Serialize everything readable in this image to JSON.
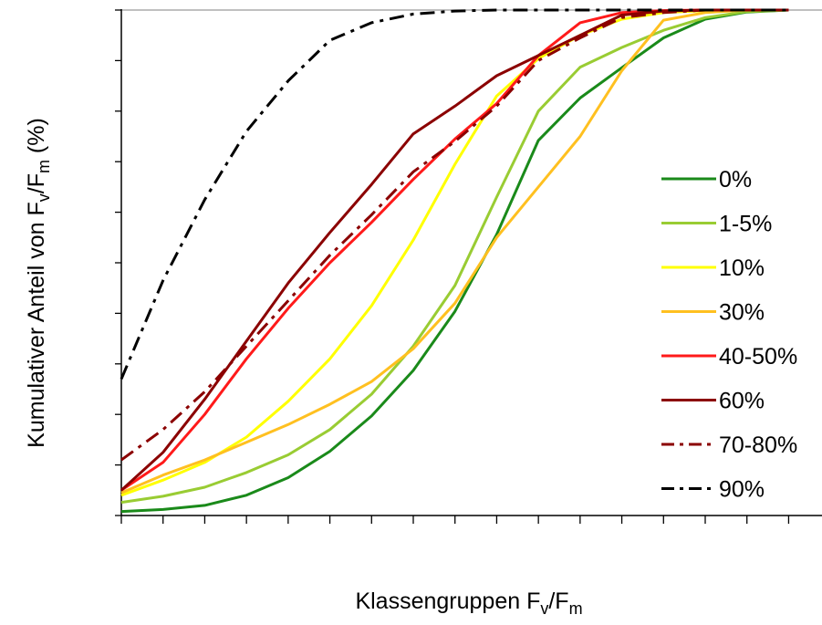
{
  "chart_data": {
    "type": "line",
    "title": "",
    "xlabel": {
      "base": "Klassengruppen F",
      "sub1": "v",
      "sep": "/F",
      "sub2": "m"
    },
    "ylabel": {
      "base": "Kumulativer Anteil von F",
      "sub1": "v",
      "sep": "/F",
      "sub2": "m",
      "suffix": " (%)"
    },
    "x": [
      1,
      2,
      3,
      4,
      5,
      6,
      7,
      8,
      9,
      10,
      11,
      12,
      13,
      14,
      15,
      16,
      17
    ],
    "xlim": [
      1,
      17.8
    ],
    "ylim": [
      0,
      100
    ],
    "y_ticks": [
      0,
      10,
      20,
      30,
      40,
      50,
      60,
      70,
      80,
      90,
      100
    ],
    "grid": false,
    "legend_position": "right",
    "series": [
      {
        "name": "0%",
        "color": "#1a8a1a",
        "dash": "solid",
        "values": [
          0.8,
          1.2,
          2.0,
          4.0,
          7.5,
          12.7,
          19.7,
          28.7,
          40.4,
          55.6,
          74.2,
          82.6,
          88.6,
          94.5,
          98.2,
          99.6,
          100
        ]
      },
      {
        "name": "1-5%",
        "color": "#99cc33",
        "dash": "solid",
        "values": [
          2.6,
          3.8,
          5.6,
          8.5,
          12.0,
          17.0,
          24.0,
          33.5,
          45.5,
          63.0,
          80.0,
          88.7,
          92.6,
          96.0,
          98.5,
          99.7,
          100
        ]
      },
      {
        "name": "10%",
        "color": "#ffff00",
        "dash": "solid",
        "values": [
          4.0,
          7.0,
          10.5,
          15.5,
          22.6,
          31.0,
          41.5,
          54.5,
          69.5,
          83.0,
          90.4,
          95.0,
          98.2,
          99.5,
          99.9,
          100,
          100
        ]
      },
      {
        "name": "30%",
        "color": "#ffc020",
        "dash": "solid",
        "values": [
          4.5,
          8.0,
          11.0,
          14.5,
          18.0,
          22.0,
          26.5,
          33.0,
          42.0,
          55.0,
          65.0,
          75.0,
          88.0,
          98.0,
          99.5,
          100,
          100
        ]
      },
      {
        "name": "40-50%",
        "color": "#ff1a1a",
        "dash": "solid",
        "values": [
          5.0,
          10.5,
          20.0,
          31.0,
          41.0,
          50.0,
          58.0,
          66.5,
          74.5,
          81.5,
          91.0,
          97.5,
          99.5,
          99.9,
          100,
          100,
          100
        ]
      },
      {
        "name": "60%",
        "color": "#8b0000",
        "dash": "solid",
        "values": [
          5.0,
          12.5,
          23.0,
          34.5,
          46.0,
          56.0,
          65.5,
          75.5,
          81.0,
          87.0,
          91.0,
          95.0,
          99.0,
          99.8,
          100,
          100,
          100
        ]
      },
      {
        "name": "70-80%",
        "color": "#8b0000",
        "dash": "dashdot",
        "values": [
          11.0,
          17.0,
          24.5,
          33.5,
          42.5,
          51.5,
          59.5,
          68.0,
          74.0,
          81.0,
          90.0,
          94.5,
          98.5,
          99.5,
          100,
          100,
          100
        ]
      },
      {
        "name": "90%",
        "color": "#000000",
        "dash": "dashdot",
        "values": [
          27.0,
          46.5,
          62.5,
          76.0,
          86.0,
          94.0,
          97.5,
          99.2,
          99.8,
          100,
          100,
          100,
          100,
          100,
          100,
          100,
          100
        ]
      }
    ]
  }
}
